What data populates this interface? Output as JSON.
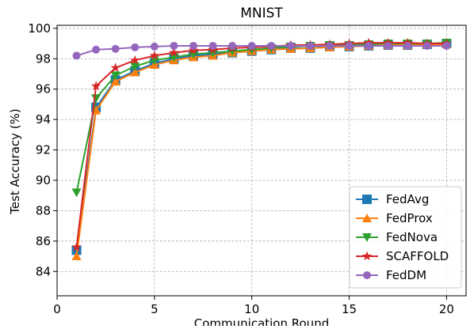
{
  "chart_data": {
    "type": "line",
    "title": "MNIST",
    "x_label": "Communication Round",
    "y_label": "Test Accuracy (%)",
    "x": [
      1,
      2,
      3,
      4,
      5,
      6,
      7,
      8,
      9,
      10,
      11,
      12,
      13,
      14,
      15,
      16,
      17,
      18,
      19,
      20
    ],
    "series": [
      {
        "name": "FedAvg",
        "color": "#1f77b4",
        "marker": "square",
        "values": [
          85.4,
          94.8,
          96.6,
          97.2,
          97.7,
          98.0,
          98.2,
          98.3,
          98.4,
          98.5,
          98.6,
          98.7,
          98.7,
          98.8,
          98.8,
          98.85,
          98.9,
          98.9,
          98.95,
          99.0
        ]
      },
      {
        "name": "FedProx",
        "color": "#ff7f0e",
        "marker": "triangle-up",
        "values": [
          85.0,
          94.6,
          96.5,
          97.1,
          97.6,
          97.9,
          98.1,
          98.2,
          98.4,
          98.5,
          98.6,
          98.65,
          98.7,
          98.75,
          98.8,
          98.85,
          98.9,
          98.9,
          98.95,
          98.95
        ]
      },
      {
        "name": "FedNova",
        "color": "#2ca02c",
        "marker": "triangle-down",
        "values": [
          89.2,
          95.4,
          96.9,
          97.5,
          97.9,
          98.1,
          98.3,
          98.4,
          98.5,
          98.6,
          98.7,
          98.8,
          98.85,
          98.9,
          98.9,
          98.95,
          99.0,
          99.0,
          99.0,
          99.05
        ]
      },
      {
        "name": "SCAFFOLD",
        "color": "#d62728",
        "marker": "star",
        "values": [
          85.6,
          96.2,
          97.4,
          97.9,
          98.2,
          98.4,
          98.55,
          98.6,
          98.7,
          98.75,
          98.8,
          98.9,
          98.9,
          98.95,
          99.0,
          99.05,
          99.05,
          99.05,
          99.0,
          99.0
        ]
      },
      {
        "name": "FedDM",
        "color": "#9467bd",
        "marker": "circle",
        "values": [
          98.2,
          98.6,
          98.65,
          98.75,
          98.8,
          98.85,
          98.85,
          98.85,
          98.85,
          98.85,
          98.85,
          98.85,
          98.85,
          98.85,
          98.85,
          98.85,
          98.85,
          98.85,
          98.85,
          98.85
        ]
      }
    ],
    "xlim": [
      0,
      21
    ],
    "ylim": [
      82.4,
      100.2
    ],
    "xticks": [
      0,
      5,
      10,
      15,
      20
    ],
    "yticks": [
      84,
      86,
      88,
      90,
      92,
      94,
      96,
      98,
      100
    ],
    "grid": true,
    "legend": "lower right"
  }
}
